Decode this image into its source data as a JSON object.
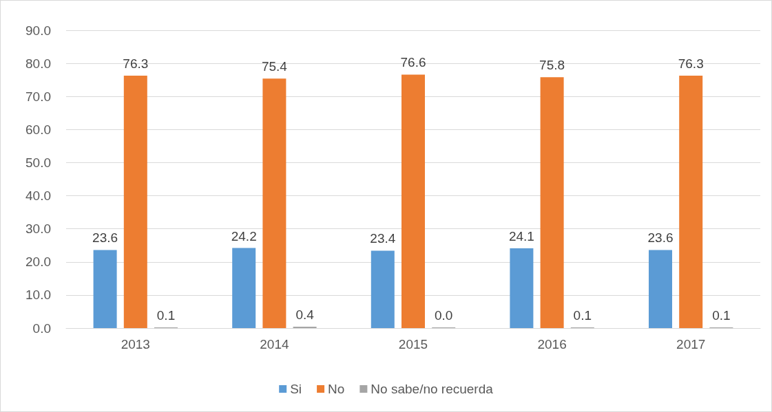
{
  "chart_data": {
    "type": "bar",
    "categories": [
      "2013",
      "2014",
      "2015",
      "2016",
      "2017"
    ],
    "series": [
      {
        "name": "Si",
        "color": "#5b9bd5",
        "values": [
          23.6,
          24.2,
          23.4,
          24.1,
          23.6
        ],
        "value_labels": [
          "23.6",
          "24.2",
          "23.4",
          "24.1",
          "23.6"
        ]
      },
      {
        "name": "No",
        "color": "#ed7d31",
        "values": [
          76.3,
          75.4,
          76.6,
          75.8,
          76.3
        ],
        "value_labels": [
          "76.3",
          "75.4",
          "76.6",
          "75.8",
          "76.3"
        ]
      },
      {
        "name": "No sabe/no recuerda",
        "color": "#a5a5a5",
        "values": [
          0.1,
          0.4,
          0.0,
          0.1,
          0.1
        ],
        "value_labels": [
          "0.1",
          "0.4",
          "0.0",
          "0.1",
          "0.1"
        ]
      }
    ],
    "ylim": [
      0,
      90
    ],
    "yticks": [
      {
        "value": 0,
        "label": "0.0"
      },
      {
        "value": 10,
        "label": "10.0"
      },
      {
        "value": 20,
        "label": "20.0"
      },
      {
        "value": 30,
        "label": "30.0"
      },
      {
        "value": 40,
        "label": "40.0"
      },
      {
        "value": 50,
        "label": "50.0"
      },
      {
        "value": 60,
        "label": "60.0"
      },
      {
        "value": 70,
        "label": "70.0"
      },
      {
        "value": 80,
        "label": "80.0"
      },
      {
        "value": 90,
        "label": "90.0"
      }
    ],
    "grid": "y",
    "legend": "bottom"
  }
}
